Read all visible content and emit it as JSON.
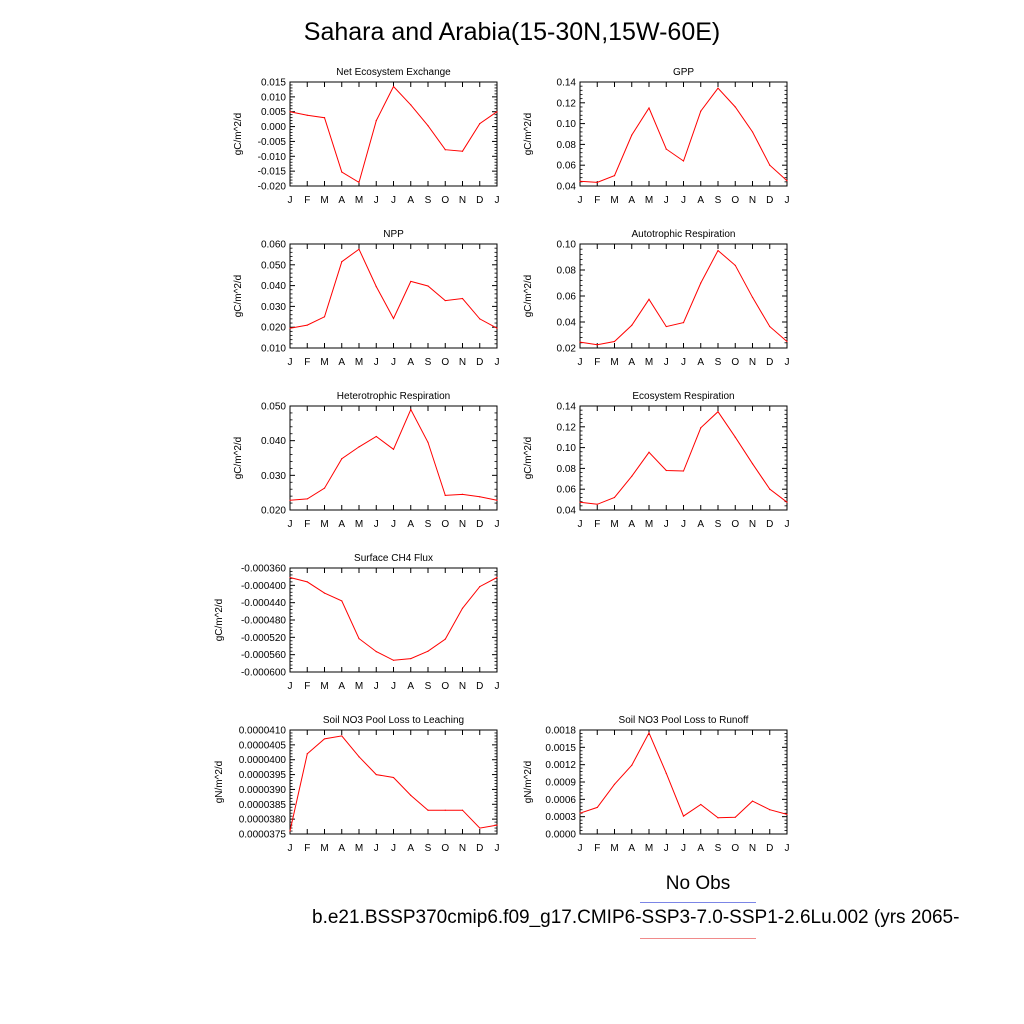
{
  "page": {
    "title": "Sahara and Arabia(15-30N,15W-60E)",
    "legend": {
      "obs_label": "No Obs",
      "model_label": "b.e21.BSSP370cmip6.f09_g17.CMIP6-SSP3-7.0-SSP1-2.6Lu.002 (yrs 2065-",
      "obs_color": "#7b85e6",
      "model_color": "#ff0000"
    }
  },
  "chart_data": [
    {
      "type": "line",
      "title": "Net Ecosystem Exchange",
      "ylabel": "gC/m^2/d",
      "x": [
        "J",
        "F",
        "M",
        "A",
        "M",
        "J",
        "J",
        "A",
        "S",
        "O",
        "N",
        "D",
        "J"
      ],
      "ylim": [
        -0.02,
        0.015
      ],
      "yticks": [
        "0.015",
        "0.010",
        "0.005",
        "0.000",
        "-0.005",
        "-0.010",
        "-0.015",
        "-0.020"
      ],
      "ytick_values": [
        0.015,
        0.01,
        0.005,
        0,
        -0.005,
        -0.01,
        -0.015,
        -0.02
      ],
      "series": [
        {
          "values": [
            0.005,
            0.0038,
            0.003,
            -0.0153,
            -0.0188,
            0.002,
            0.0135,
            0.0073,
            0.0003,
            -0.0078,
            -0.0083,
            0.001,
            0.005
          ]
        }
      ]
    },
    {
      "type": "line",
      "title": "GPP",
      "ylabel": "gC/m^2/d",
      "x": [
        "J",
        "F",
        "M",
        "A",
        "M",
        "J",
        "J",
        "A",
        "S",
        "O",
        "N",
        "D",
        "J"
      ],
      "ylim": [
        0.04,
        0.14
      ],
      "yticks": [
        "0.14",
        "0.12",
        "0.10",
        "0.08",
        "0.06",
        "0.04"
      ],
      "ytick_values": [
        0.14,
        0.12,
        0.1,
        0.08,
        0.06,
        0.04
      ],
      "series": [
        {
          "values": [
            0.0445,
            0.0435,
            0.05,
            0.089,
            0.115,
            0.0755,
            0.064,
            0.112,
            0.134,
            0.116,
            0.092,
            0.06,
            0.045
          ]
        }
      ]
    },
    {
      "type": "line",
      "title": "NPP",
      "ylabel": "gC/m^2/d",
      "x": [
        "J",
        "F",
        "M",
        "A",
        "M",
        "J",
        "J",
        "A",
        "S",
        "O",
        "N",
        "D",
        "J"
      ],
      "ylim": [
        0.01,
        0.06
      ],
      "yticks": [
        "0.060",
        "0.050",
        "0.040",
        "0.030",
        "0.020",
        "0.010"
      ],
      "ytick_values": [
        0.06,
        0.05,
        0.04,
        0.03,
        0.02,
        0.01
      ],
      "series": [
        {
          "values": [
            0.0195,
            0.021,
            0.025,
            0.0515,
            0.0575,
            0.0395,
            0.0242,
            0.042,
            0.0398,
            0.0328,
            0.0338,
            0.024,
            0.0195
          ]
        }
      ]
    },
    {
      "type": "line",
      "title": "Autotrophic Respiration",
      "ylabel": "gC/m^2/d",
      "x": [
        "J",
        "F",
        "M",
        "A",
        "M",
        "J",
        "J",
        "A",
        "S",
        "O",
        "N",
        "D",
        "J"
      ],
      "ylim": [
        0.02,
        0.1
      ],
      "yticks": [
        "0.10",
        "0.08",
        "0.06",
        "0.04",
        "0.02"
      ],
      "ytick_values": [
        0.1,
        0.08,
        0.06,
        0.04,
        0.02
      ],
      "series": [
        {
          "values": [
            0.0245,
            0.0225,
            0.025,
            0.0375,
            0.0575,
            0.0365,
            0.0395,
            0.07,
            0.095,
            0.0835,
            0.059,
            0.0365,
            0.025
          ]
        }
      ]
    },
    {
      "type": "line",
      "title": "Heterotrophic Respiration",
      "ylabel": "gC/m^2/d",
      "x": [
        "J",
        "F",
        "M",
        "A",
        "M",
        "J",
        "J",
        "A",
        "S",
        "O",
        "N",
        "D",
        "J"
      ],
      "ylim": [
        0.02,
        0.05
      ],
      "yticks": [
        "0.050",
        "0.040",
        "0.030",
        "0.020"
      ],
      "ytick_values": [
        0.05,
        0.04,
        0.03,
        0.02
      ],
      "series": [
        {
          "values": [
            0.0228,
            0.0232,
            0.0263,
            0.0348,
            0.0382,
            0.0412,
            0.0375,
            0.049,
            0.0395,
            0.0242,
            0.0245,
            0.0238,
            0.0228
          ]
        }
      ]
    },
    {
      "type": "line",
      "title": "Ecosystem Respiration",
      "ylabel": "gC/m^2/d",
      "x": [
        "J",
        "F",
        "M",
        "A",
        "M",
        "J",
        "J",
        "A",
        "S",
        "O",
        "N",
        "D",
        "J"
      ],
      "ylim": [
        0.04,
        0.14
      ],
      "yticks": [
        "0.14",
        "0.12",
        "0.10",
        "0.08",
        "0.06",
        "0.04"
      ],
      "ytick_values": [
        0.14,
        0.12,
        0.1,
        0.08,
        0.06,
        0.04
      ],
      "series": [
        {
          "values": [
            0.0475,
            0.0455,
            0.052,
            0.0725,
            0.0955,
            0.078,
            0.0775,
            0.119,
            0.1345,
            0.11,
            0.0845,
            0.06,
            0.0475
          ]
        }
      ]
    },
    {
      "type": "line",
      "title": "Surface CH4 Flux",
      "ylabel": "gC/m^2/d",
      "x": [
        "J",
        "F",
        "M",
        "A",
        "M",
        "J",
        "J",
        "A",
        "S",
        "O",
        "N",
        "D",
        "J"
      ],
      "ylim": [
        -0.0006,
        -0.00036
      ],
      "yticks": [
        "-0.000360",
        "-0.000400",
        "-0.000440",
        "-0.000480",
        "-0.000520",
        "-0.000560",
        "-0.000600"
      ],
      "ytick_values": [
        -0.00036,
        -0.0004,
        -0.00044,
        -0.00048,
        -0.00052,
        -0.00056,
        -0.0006
      ],
      "series": [
        {
          "values": [
            -0.000382,
            -0.000392,
            -0.000418,
            -0.000436,
            -0.000523,
            -0.000553,
            -0.000573,
            -0.000569,
            -0.000552,
            -0.000524,
            -0.000453,
            -0.000403,
            -0.000382
          ]
        }
      ]
    },
    {
      "type": "line",
      "title": "Soil NO3 Pool Loss to Leaching",
      "ylabel": "gN/m^2/d",
      "x": [
        "J",
        "F",
        "M",
        "A",
        "M",
        "J",
        "J",
        "A",
        "S",
        "O",
        "N",
        "D",
        "J"
      ],
      "ylim": [
        3.75e-05,
        4.1e-05
      ],
      "yticks": [
        "0.0000410",
        "0.0000405",
        "0.0000400",
        "0.0000395",
        "0.0000390",
        "0.0000385",
        "0.0000380",
        "0.0000375"
      ],
      "ytick_values": [
        4.1e-05,
        4.05e-05,
        4e-05,
        3.95e-05,
        3.9e-05,
        3.85e-05,
        3.8e-05,
        3.75e-05
      ],
      "series": [
        {
          "values": [
            3.76e-05,
            4.02e-05,
            4.07e-05,
            4.08e-05,
            4.01e-05,
            3.95e-05,
            3.94e-05,
            3.88e-05,
            3.83e-05,
            3.83e-05,
            3.83e-05,
            3.77e-05,
            3.78e-05
          ]
        }
      ]
    },
    {
      "type": "line",
      "title": "Soil NO3 Pool Loss to Runoff",
      "ylabel": "gN/m^2/d",
      "x": [
        "J",
        "F",
        "M",
        "A",
        "M",
        "J",
        "J",
        "A",
        "S",
        "O",
        "N",
        "D",
        "J"
      ],
      "ylim": [
        0,
        0.0018
      ],
      "yticks": [
        "0.0018",
        "0.0015",
        "0.0012",
        "0.0009",
        "0.0006",
        "0.0003",
        "0.0000"
      ],
      "ytick_values": [
        0.0018,
        0.0015,
        0.0012,
        0.0009,
        0.0006,
        0.0003,
        0
      ],
      "series": [
        {
          "values": [
            0.00036,
            0.00046,
            0.00086,
            0.00119,
            0.00175,
            0.00105,
            0.00031,
            0.00051,
            0.00028,
            0.00029,
            0.00057,
            0.00042,
            0.00034
          ]
        }
      ]
    }
  ]
}
